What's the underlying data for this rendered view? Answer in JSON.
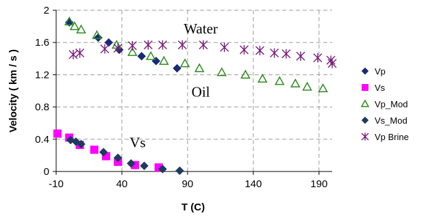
{
  "chart_data": {
    "type": "scatter",
    "xlabel": "T (C)",
    "ylabel": "Velocity ( km / s )",
    "xlim": [
      -10,
      200
    ],
    "ylim": [
      0,
      2
    ],
    "xticks": [
      -10,
      40,
      90,
      140,
      190
    ],
    "yticks": [
      0,
      0.4,
      0.8,
      1.2,
      1.6,
      2
    ],
    "grid": "dashed",
    "legend_position": "right",
    "annotations": [
      {
        "text": "Water",
        "x": 100,
        "y": 1.71
      },
      {
        "text": "Oil",
        "x": 100,
        "y": 0.93
      },
      {
        "text": "Vs",
        "x": 52,
        "y": 0.3
      }
    ],
    "series": [
      {
        "name": "Vp",
        "marker": "diamond",
        "color": "#1a2a7a",
        "points": [
          [
            0,
            1.85
          ],
          [
            22,
            1.66
          ],
          [
            30,
            1.6
          ],
          [
            38,
            1.51
          ],
          [
            55,
            1.43
          ],
          [
            66,
            1.37
          ],
          [
            82,
            1.28
          ]
        ]
      },
      {
        "name": "Vs",
        "marker": "square",
        "color": "#ff00ff",
        "points": [
          [
            -9,
            0.47
          ],
          [
            0,
            0.42
          ],
          [
            8,
            0.33
          ],
          [
            19,
            0.27
          ],
          [
            28,
            0.19
          ],
          [
            37,
            0.12
          ],
          [
            50,
            0.08
          ],
          [
            68,
            0.05
          ]
        ]
      },
      {
        "name": "Vp_Mod",
        "marker": "triangle",
        "color": "#2e8b1f",
        "points": [
          [
            0,
            1.86
          ],
          [
            4,
            1.8
          ],
          [
            9,
            1.76
          ],
          [
            21,
            1.69
          ],
          [
            36,
            1.57
          ],
          [
            48,
            1.48
          ],
          [
            62,
            1.43
          ],
          [
            72,
            1.37
          ],
          [
            88,
            1.34
          ],
          [
            99,
            1.28
          ],
          [
            116,
            1.23
          ],
          [
            134,
            1.2
          ],
          [
            147,
            1.15
          ],
          [
            160,
            1.12
          ],
          [
            172,
            1.09
          ],
          [
            181,
            1.05
          ],
          [
            193,
            1.03
          ]
        ]
      },
      {
        "name": "Vs_Mod",
        "marker": "diamond",
        "color": "#1f3a5f",
        "points": [
          [
            1,
            0.39
          ],
          [
            5,
            0.37
          ],
          [
            9,
            0.34
          ],
          [
            26,
            0.24
          ],
          [
            37,
            0.17
          ],
          [
            47,
            0.1
          ],
          [
            57,
            0.07
          ],
          [
            71,
            0.03
          ],
          [
            84,
            0.01
          ]
        ]
      },
      {
        "name": "Vp Brine",
        "marker": "star",
        "color": "#7a1a7a",
        "points": [
          [
            3,
            1.45
          ],
          [
            8,
            1.47
          ],
          [
            27,
            1.52
          ],
          [
            37,
            1.53
          ],
          [
            48,
            1.56
          ],
          [
            60,
            1.57
          ],
          [
            71,
            1.57
          ],
          [
            86,
            1.57
          ],
          [
            102,
            1.57
          ],
          [
            118,
            1.54
          ],
          [
            133,
            1.51
          ],
          [
            145,
            1.5
          ],
          [
            156,
            1.47
          ],
          [
            165,
            1.46
          ],
          [
            176,
            1.43
          ],
          [
            189,
            1.41
          ],
          [
            199,
            1.38
          ],
          [
            212,
            1.34
          ]
        ]
      }
    ]
  }
}
